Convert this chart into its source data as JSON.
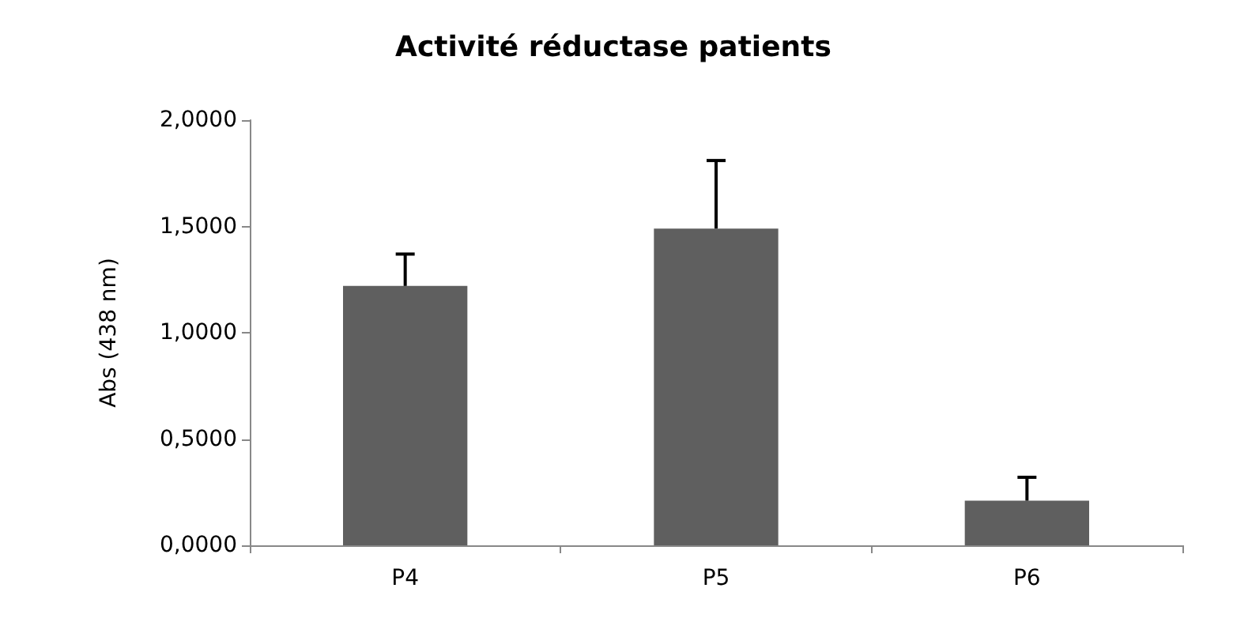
{
  "chart_data": {
    "type": "bar",
    "title": "Activité réductase patients",
    "ylabel": "Abs (438 nm)",
    "categories": [
      "P4",
      "P5",
      "P6"
    ],
    "values": [
      1.22,
      1.49,
      0.21
    ],
    "errors": [
      [
        1.22,
        1.37
      ],
      [
        1.49,
        1.81
      ],
      [
        0.21,
        0.32
      ]
    ],
    "color": "#5f5f5f",
    "ylim": [
      0,
      2
    ],
    "yticks": [
      {
        "value": 0,
        "label": "0,0000"
      },
      {
        "value": 0.5,
        "label": "0,5000"
      },
      {
        "value": 1,
        "label": "1,0000"
      },
      {
        "value": 1.5,
        "label": "1,5000"
      },
      {
        "value": 2,
        "label": "2,0000"
      }
    ],
    "grid": false
  }
}
